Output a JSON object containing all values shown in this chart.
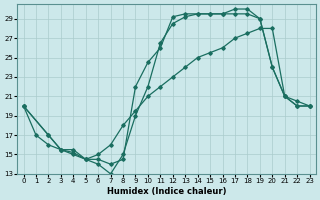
{
  "xlabel": "Humidex (Indice chaleur)",
  "bg_color": "#cce8ea",
  "grid_color": "#aacccc",
  "line_color": "#1a6e60",
  "xlim": [
    -0.5,
    23.5
  ],
  "ylim": [
    13,
    30.5
  ],
  "yticks": [
    13,
    15,
    17,
    19,
    21,
    23,
    25,
    27,
    29
  ],
  "xticks": [
    0,
    1,
    2,
    3,
    4,
    5,
    6,
    7,
    8,
    9,
    10,
    11,
    12,
    13,
    14,
    15,
    16,
    17,
    18,
    19,
    20,
    21,
    22,
    23
  ],
  "line1_x": [
    0,
    1,
    2,
    3,
    4,
    5,
    6,
    7,
    8,
    9,
    10,
    11,
    12,
    13,
    14,
    15,
    16,
    17,
    18,
    19,
    20,
    21,
    22,
    23
  ],
  "line1_y": [
    20,
    17,
    16,
    15.5,
    15,
    14.5,
    14,
    13,
    15,
    19,
    22,
    26.5,
    28.5,
    29.2,
    29.5,
    29.5,
    29.5,
    30,
    30,
    29,
    24,
    21,
    20.5,
    20
  ],
  "line2_x": [
    0,
    2,
    3,
    4,
    5,
    6,
    7,
    8,
    9,
    10,
    11,
    12,
    13,
    14,
    15,
    16,
    17,
    18,
    19,
    20,
    21,
    22,
    23
  ],
  "line2_y": [
    20,
    17,
    15.5,
    15.5,
    14.5,
    15,
    16,
    18,
    19.5,
    21,
    22,
    23,
    24,
    25,
    25.5,
    26,
    27,
    27.5,
    28,
    28,
    21,
    20,
    20
  ],
  "line3_x": [
    0,
    2,
    3,
    4,
    5,
    6,
    7,
    8,
    9,
    10,
    11,
    12,
    13,
    14,
    15,
    16,
    17,
    18,
    19,
    20,
    21,
    22,
    23
  ],
  "line3_y": [
    20,
    17,
    15.5,
    15.2,
    14.5,
    14.5,
    14,
    14.5,
    22,
    24.5,
    26,
    29.2,
    29.5,
    29.5,
    29.5,
    29.5,
    29.5,
    29.5,
    29,
    24,
    21,
    20,
    20
  ]
}
